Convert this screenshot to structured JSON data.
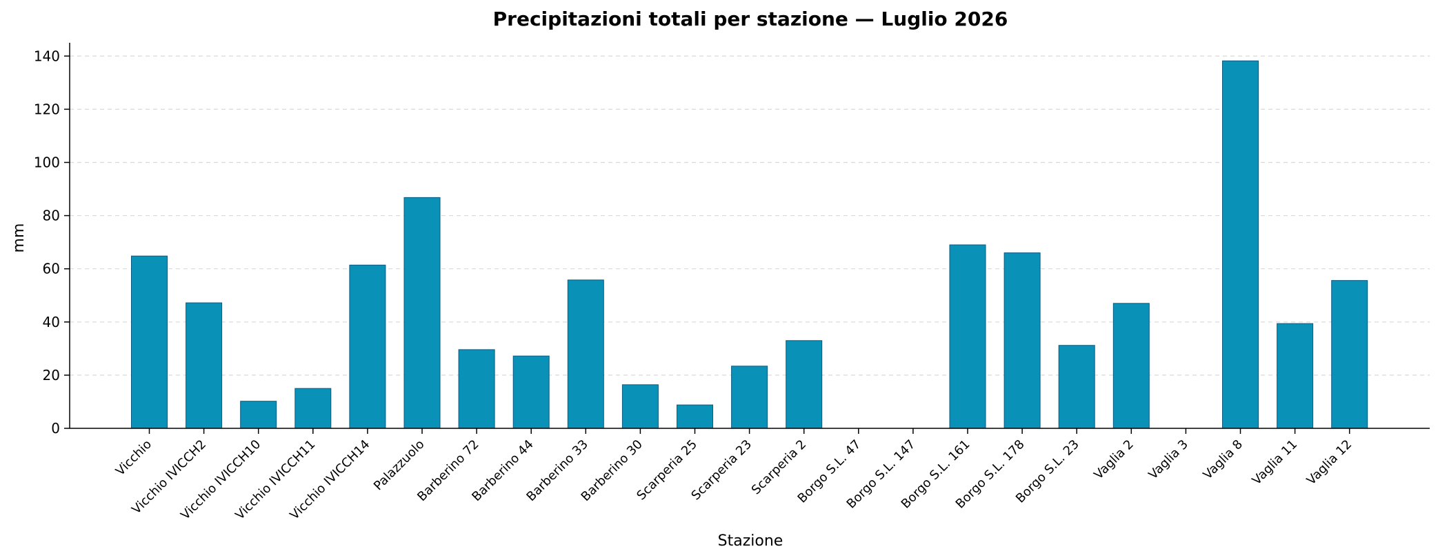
{
  "chart_data": {
    "type": "bar",
    "title": "Precipitazioni totali per stazione — Luglio 2026",
    "xlabel": "Stazione",
    "ylabel": "mm",
    "ylim": [
      0,
      145
    ],
    "yticks": [
      0,
      20,
      40,
      60,
      80,
      100,
      120,
      140
    ],
    "grid": "y-dashed",
    "bar_color": "#0a91b7",
    "bar_edge_color": "#0a5a80",
    "categories": [
      "Vicchio",
      "Vicchio IVICCH2",
      "Vicchio IVICCH10",
      "Vicchio IVICCH11",
      "Vicchio IVICCH14",
      "Palazzuolo",
      "Barberino 72",
      "Barberino 44",
      "Barberino 33",
      "Barberino 30",
      "Scarperia 25",
      "Scarperia 23",
      "Scarperia 2",
      "Borgo S.L. 47",
      "Borgo S.L. 147",
      "Borgo S.L. 161",
      "Borgo S.L. 178",
      "Borgo S.L. 23",
      "Vaglia 2",
      "Vaglia 3",
      "Vaglia 8",
      "Vaglia 11",
      "Vaglia 12"
    ],
    "values": [
      64.8,
      47.2,
      10.2,
      15.0,
      61.4,
      86.8,
      29.6,
      27.2,
      55.8,
      16.4,
      8.8,
      23.4,
      33.0,
      0,
      0,
      69.0,
      66.0,
      31.2,
      47.0,
      0,
      138.2,
      39.4,
      55.6
    ]
  }
}
